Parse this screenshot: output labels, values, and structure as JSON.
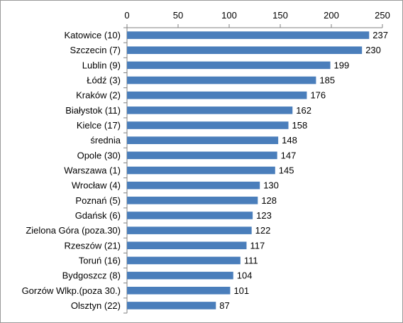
{
  "chart_data": {
    "type": "bar",
    "orientation": "horizontal",
    "title": "",
    "xlabel": "",
    "ylabel": "",
    "xlim": [
      0,
      250
    ],
    "x_ticks": [
      0,
      50,
      100,
      150,
      200,
      250
    ],
    "x_axis_position": "top",
    "grid": false,
    "legend": "none",
    "bar_color": "#4a7ebb",
    "data_labels": true,
    "categories": [
      "Katowice (10)",
      "Szczecin (7)",
      "Lublin (9)",
      "Łódź (3)",
      "Kraków (2)",
      "Białystok (11)",
      "Kielce (17)",
      "średnia",
      "Opole (30)",
      "Warszawa (1)",
      "Wrocław (4)",
      "Poznań (5)",
      "Gdańsk (6)",
      "Zielona Góra (poza.30)",
      "Rzeszów (21)",
      "Toruń (16)",
      "Bydgoszcz (8)",
      "Gorzów Wlkp.(poza 30.)",
      "Olsztyn (22)"
    ],
    "values": [
      237,
      230,
      199,
      185,
      176,
      162,
      158,
      148,
      147,
      145,
      130,
      128,
      123,
      122,
      117,
      111,
      104,
      101,
      87
    ]
  }
}
